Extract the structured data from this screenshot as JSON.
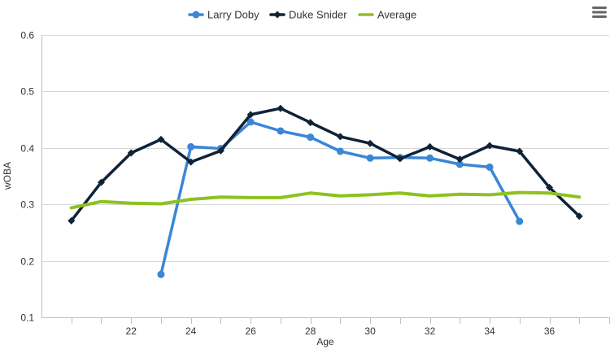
{
  "chart_data": {
    "type": "line",
    "title": "",
    "xlabel": "Age",
    "ylabel": "wOBA",
    "xlim": [
      19,
      38
    ],
    "ylim": [
      0.1,
      0.6
    ],
    "x_ticks": [
      22,
      24,
      26,
      28,
      30,
      32,
      34,
      36
    ],
    "y_ticks": [
      0.1,
      0.2,
      0.3,
      0.4,
      0.5,
      0.6
    ],
    "grid": "horizontal",
    "legend_position": "top-center",
    "series": [
      {
        "name": "Larry Doby",
        "color": "#3a87d6",
        "marker": "circle",
        "x": [
          23,
          24,
          25,
          26,
          27,
          28,
          29,
          30,
          31,
          32,
          33,
          34,
          35
        ],
        "y": [
          0.176,
          0.402,
          0.399,
          0.446,
          0.43,
          0.419,
          0.394,
          0.382,
          0.383,
          0.382,
          0.371,
          0.366,
          0.27
        ]
      },
      {
        "name": "Duke Snider",
        "color": "#0f2236",
        "marker": "diamond",
        "x": [
          20,
          21,
          22,
          23,
          24,
          25,
          26,
          27,
          28,
          29,
          30,
          31,
          32,
          33,
          34,
          35,
          36,
          37
        ],
        "y": [
          0.271,
          0.339,
          0.391,
          0.415,
          0.375,
          0.395,
          0.459,
          0.47,
          0.445,
          0.42,
          0.408,
          0.381,
          0.402,
          0.38,
          0.404,
          0.394,
          0.33,
          0.279
        ]
      },
      {
        "name": "Average",
        "color": "#8dc21f",
        "marker": "none",
        "x": [
          20,
          21,
          22,
          23,
          24,
          25,
          26,
          27,
          28,
          29,
          30,
          31,
          32,
          33,
          34,
          35,
          36,
          37
        ],
        "y": [
          0.294,
          0.305,
          0.302,
          0.301,
          0.309,
          0.313,
          0.312,
          0.312,
          0.32,
          0.315,
          0.317,
          0.32,
          0.315,
          0.318,
          0.317,
          0.321,
          0.32,
          0.313
        ]
      }
    ]
  },
  "menu": {
    "icon": "hamburger-menu-icon"
  }
}
